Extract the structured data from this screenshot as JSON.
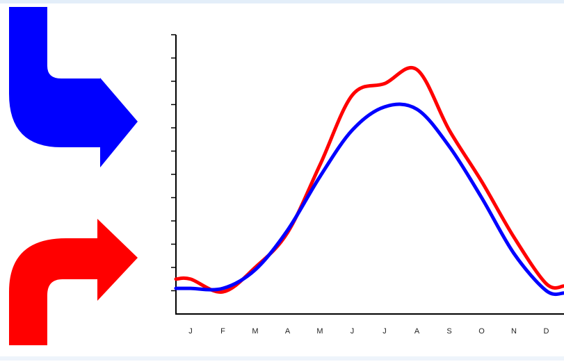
{
  "chart_data": {
    "type": "line",
    "title": "",
    "xlabel": "",
    "ylabel": "",
    "categories": [
      "J",
      "F",
      "M",
      "A",
      "M",
      "J",
      "J",
      "A",
      "S",
      "O",
      "N",
      "D"
    ],
    "ylim": [
      0,
      12
    ],
    "y_ticks": 12,
    "grid": false,
    "series": [
      {
        "color": "#ff0000",
        "values": [
          1.5,
          0.95,
          2.0,
          3.5,
          6.4,
          9.4,
          9.9,
          10.5,
          7.9,
          5.7,
          3.3,
          1.3
        ]
      },
      {
        "color": "#0000ff",
        "values": [
          1.1,
          1.1,
          1.9,
          3.6,
          5.9,
          7.9,
          8.9,
          8.8,
          7.2,
          5.0,
          2.6,
          1.0
        ]
      }
    ]
  },
  "decorations": {
    "blue_arrow_icon": "curved-arrow-down-right",
    "red_arrow_icon": "curved-arrow-up-right",
    "blue_color": "#0000ff",
    "red_color": "#ff0000"
  }
}
